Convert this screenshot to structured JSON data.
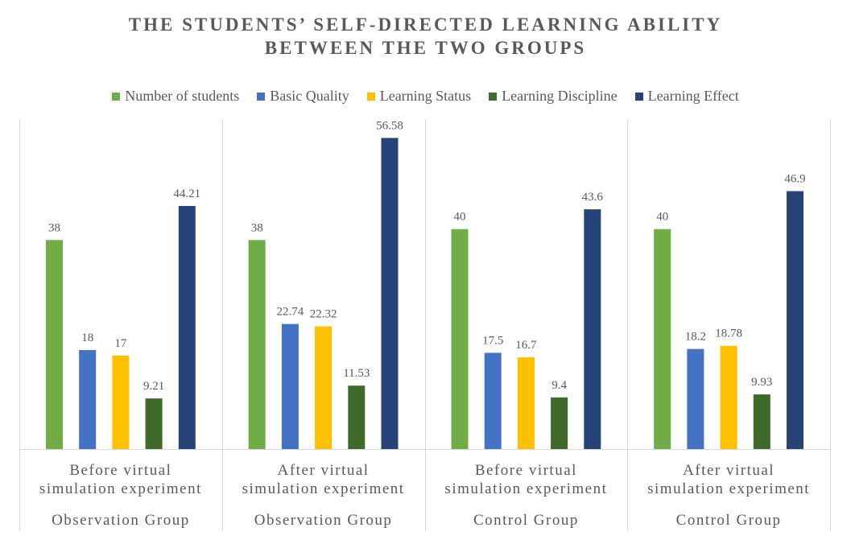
{
  "chart_data": {
    "type": "bar",
    "title_lines": [
      "THE STUDENTS’ SELF-DIRECTED LEARNING ABILITY",
      "BETWEEN THE TWO GROUPS"
    ],
    "categories": [
      {
        "sub": [
          "Before virtual",
          "simulation experiment"
        ],
        "group": "Observation Group"
      },
      {
        "sub": [
          "After virtual",
          "simulation experiment"
        ],
        "group": "Observation Group"
      },
      {
        "sub": [
          "Before virtual",
          "simulation experiment"
        ],
        "group": "Control Group"
      },
      {
        "sub": [
          "After virtual",
          "simulation experiment"
        ],
        "group": "Control Group"
      }
    ],
    "series": [
      {
        "name": "Number of students",
        "color": "#70AD47",
        "values": [
          38,
          38,
          40,
          40
        ],
        "labels": [
          "38",
          "38",
          "40",
          "40"
        ]
      },
      {
        "name": "Basic Quality",
        "color": "#4472C4",
        "values": [
          18,
          22.74,
          17.5,
          18.2
        ],
        "labels": [
          "18",
          "22.74",
          "17.5",
          "18.2"
        ]
      },
      {
        "name": "Learning Status",
        "color": "#FFC000",
        "values": [
          17,
          22.32,
          16.7,
          18.78
        ],
        "labels": [
          "17",
          "22.32",
          "16.7",
          "18.78"
        ]
      },
      {
        "name": "Learning Discipline",
        "color": "#3E6B2A",
        "values": [
          9.21,
          11.53,
          9.4,
          9.93
        ],
        "labels": [
          "9.21",
          "11.53",
          "9.4",
          "9.93"
        ]
      },
      {
        "name": "Learning Effect",
        "color": "#264478",
        "values": [
          44.21,
          56.58,
          43.6,
          46.9
        ],
        "labels": [
          "44.21",
          "56.58",
          "43.6",
          "46.9"
        ]
      }
    ],
    "ylim": [
      0,
      60
    ],
    "grid": false,
    "legend_position": "top"
  }
}
